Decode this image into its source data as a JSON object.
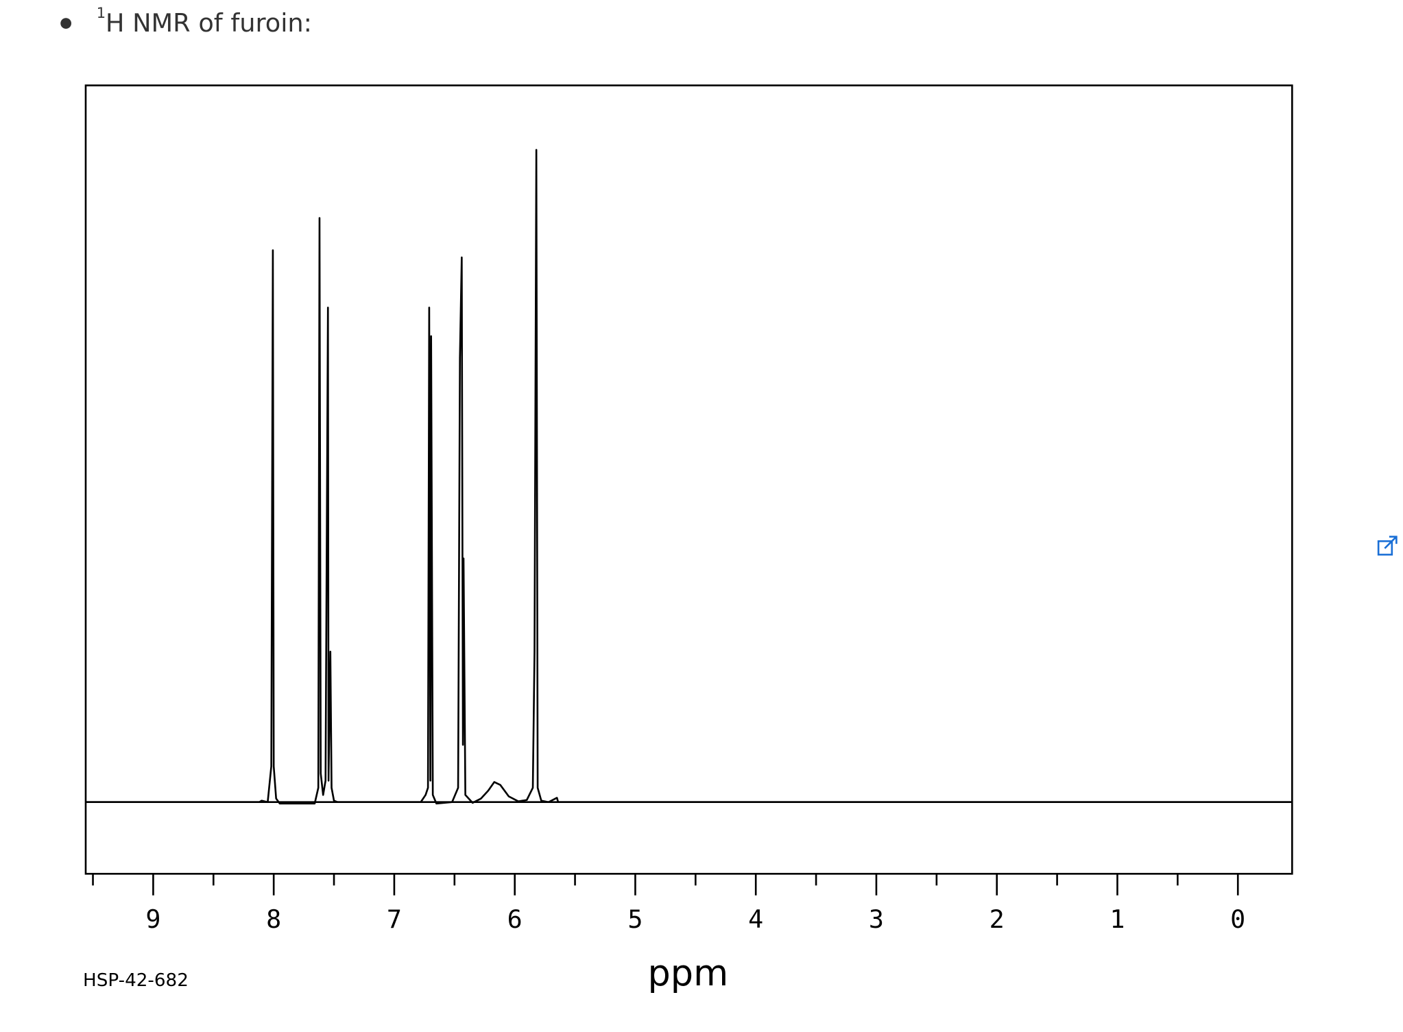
{
  "caption_superscript": "1",
  "caption": "H NMR of furoin:",
  "chart_data": {
    "type": "line",
    "xlabel": "ppm",
    "annotation": "HSP-42-682",
    "x": [
      9.56,
      8.12,
      8.1,
      8.05,
      8.02,
      8.007,
      8.0,
      7.98,
      7.95,
      7.66,
      7.63,
      7.62,
      7.61,
      7.59,
      7.57,
      7.55,
      7.545,
      7.53,
      7.52,
      7.5,
      7.47,
      6.78,
      6.74,
      6.72,
      6.71,
      6.7,
      6.694,
      6.68,
      6.65,
      6.52,
      6.47,
      6.455,
      6.44,
      6.43,
      6.425,
      6.41,
      6.35,
      6.28,
      6.22,
      6.17,
      6.12,
      6.05,
      5.97,
      5.9,
      5.85,
      5.836,
      5.821,
      5.81,
      5.78,
      5.72,
      5.65,
      5.64,
      -0.45
    ],
    "values": [
      0,
      0,
      0.002,
      0,
      0.05,
      0.77,
      0.05,
      0.005,
      -0.002,
      -0.002,
      0.02,
      0.815,
      0.04,
      0.01,
      0.03,
      0.69,
      0.03,
      0.21,
      0.02,
      0.002,
      0,
      0,
      0.01,
      0.02,
      0.69,
      0.03,
      0.65,
      0.01,
      -0.002,
      0,
      0.02,
      0.62,
      0.76,
      0.08,
      0.34,
      0.01,
      -0.001,
      0.005,
      0.016,
      0.028,
      0.024,
      0.008,
      0.001,
      0.003,
      0.02,
      0.21,
      0.91,
      0.02,
      0.002,
      0,
      0.006,
      0,
      0
    ],
    "color": "#000000",
    "xlim": [
      9.56,
      -0.45
    ],
    "ylim": [
      -0.1,
      1.0
    ],
    "xticks": [
      9,
      8,
      7,
      6,
      5,
      4,
      3,
      2,
      1,
      0
    ],
    "xminorticks": [
      9.5,
      8.5,
      7.5,
      6.5,
      5.5,
      4.5,
      3.5,
      2.5,
      1.5,
      0.5
    ],
    "baseline": 0,
    "grid": false
  }
}
